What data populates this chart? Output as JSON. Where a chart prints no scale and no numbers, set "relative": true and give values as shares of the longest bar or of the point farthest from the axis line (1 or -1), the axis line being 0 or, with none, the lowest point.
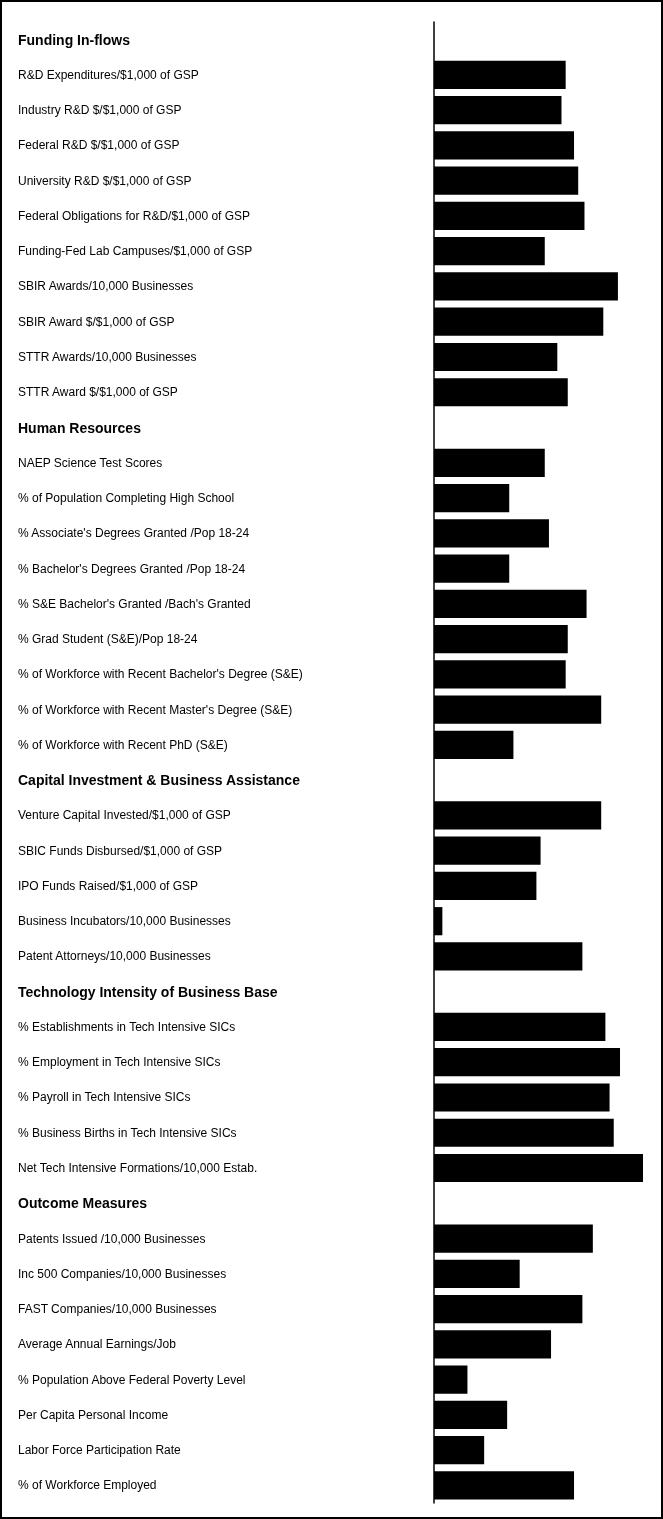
{
  "chart_data": {
    "type": "bar",
    "orientation": "horizontal",
    "relative": true,
    "color": "#000000",
    "categories": [
      "Funding In-flows",
      "R&D Expenditures/$1,000 of GSP",
      "Industry R&D $/$1,000 of GSP",
      "Federal R&D $/$1,000 of GSP",
      "University R&D $/$1,000 of GSP",
      "Federal Obligations for R&D/$1,000 of GSP",
      "Funding-Fed Lab Campuses/$1,000 of GSP",
      "SBIR Awards/10,000 Businesses",
      "SBIR Award $/$1,000 of GSP",
      "STTR Awards/10,000 Businesses",
      "STTR Award $/$1,000 of GSP",
      "Human Resources",
      "NAEP Science Test Scores",
      "% of Population Completing High School",
      "% Associate's Degrees Granted /Pop 18-24",
      "% Bachelor's Degrees Granted /Pop 18-24",
      "% S&E Bachelor's Granted /Bach's Granted",
      "% Grad Student (S&E)/Pop 18-24",
      "% of Workforce with Recent Bachelor's Degree (S&E)",
      "% of Workforce with Recent Master's Degree (S&E)",
      "% of Workforce with Recent PhD (S&E)",
      "Capital Investment & Business Assistance",
      "Venture Capital Invested/$1,000 of GSP",
      "SBIC Funds Disbursed/$1,000 of GSP",
      "IPO Funds Raised/$1,000 of GSP",
      "Business Incubators/10,000 Businesses",
      "Patent Attorneys/10,000 Businesses",
      "Technology Intensity of Business Base",
      "% Establishments in Tech Intensive SICs",
      "% Employment in Tech Intensive SICs",
      "% Payroll in Tech Intensive SICs",
      "% Business Births in Tech Intensive SICs",
      "Net Tech Intensive Formations/10,000 Estab.",
      "Outcome Measures",
      "Patents Issued /10,000 Businesses",
      "Inc 500 Companies/10,000 Businesses",
      "FAST Companies/10,000 Businesses",
      "Average Annual Earnings/Job",
      "% Population Above Federal Poverty Level",
      "Per Capita Personal Income",
      "Labor Force Participation Rate",
      "% of Workforce Employed"
    ],
    "values": [
      null,
      0.63,
      0.61,
      0.67,
      0.69,
      0.72,
      0.53,
      0.88,
      0.81,
      0.59,
      0.64,
      null,
      0.53,
      0.36,
      0.55,
      0.36,
      0.73,
      0.64,
      0.63,
      0.8,
      0.38,
      null,
      0.8,
      0.51,
      0.49,
      0.04,
      0.71,
      null,
      0.82,
      0.89,
      0.84,
      0.86,
      1,
      null,
      0.76,
      0.41,
      0.71,
      0.56,
      0.16,
      0.35,
      0.24,
      0.67
    ]
  }
}
